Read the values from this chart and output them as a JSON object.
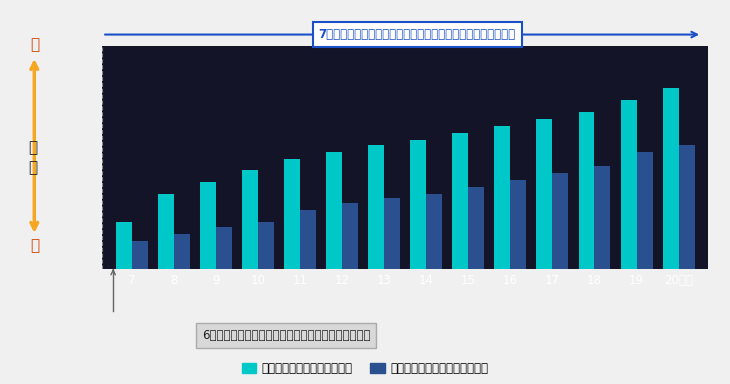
{
  "categories": [
    "7",
    "8",
    "9",
    "10",
    "11",
    "12",
    "13",
    "14",
    "15",
    "16",
    "17",
    "18",
    "19",
    "20等級"
  ],
  "no_accident": [
    2.0,
    3.2,
    3.7,
    4.2,
    4.7,
    5.0,
    5.3,
    5.5,
    5.8,
    6.1,
    6.4,
    6.7,
    7.2,
    7.7
  ],
  "accident": [
    1.2,
    1.5,
    1.8,
    2.0,
    2.5,
    2.8,
    3.0,
    3.2,
    3.5,
    3.8,
    4.1,
    4.4,
    5.0,
    5.3
  ],
  "color_no_accident": "#00C8C8",
  "color_accident": "#2B5090",
  "background_chart": "#1a1a2e",
  "background_fig": "#f0f0f0",
  "annotation_text": "7等級から、等級毎に無事故・事故ありで割引率が変化します",
  "annotation2_text": "6等級までは、無事故・事故ありとも割増引率は同じ",
  "legend1": "無事故の場合の割引イメージ",
  "legend2": "事故ありの場合の割引イメージ",
  "bar_width": 0.38,
  "arrow_color": "#F5A623",
  "text_blue": "#1a50c8",
  "dark_bg": "#141428"
}
